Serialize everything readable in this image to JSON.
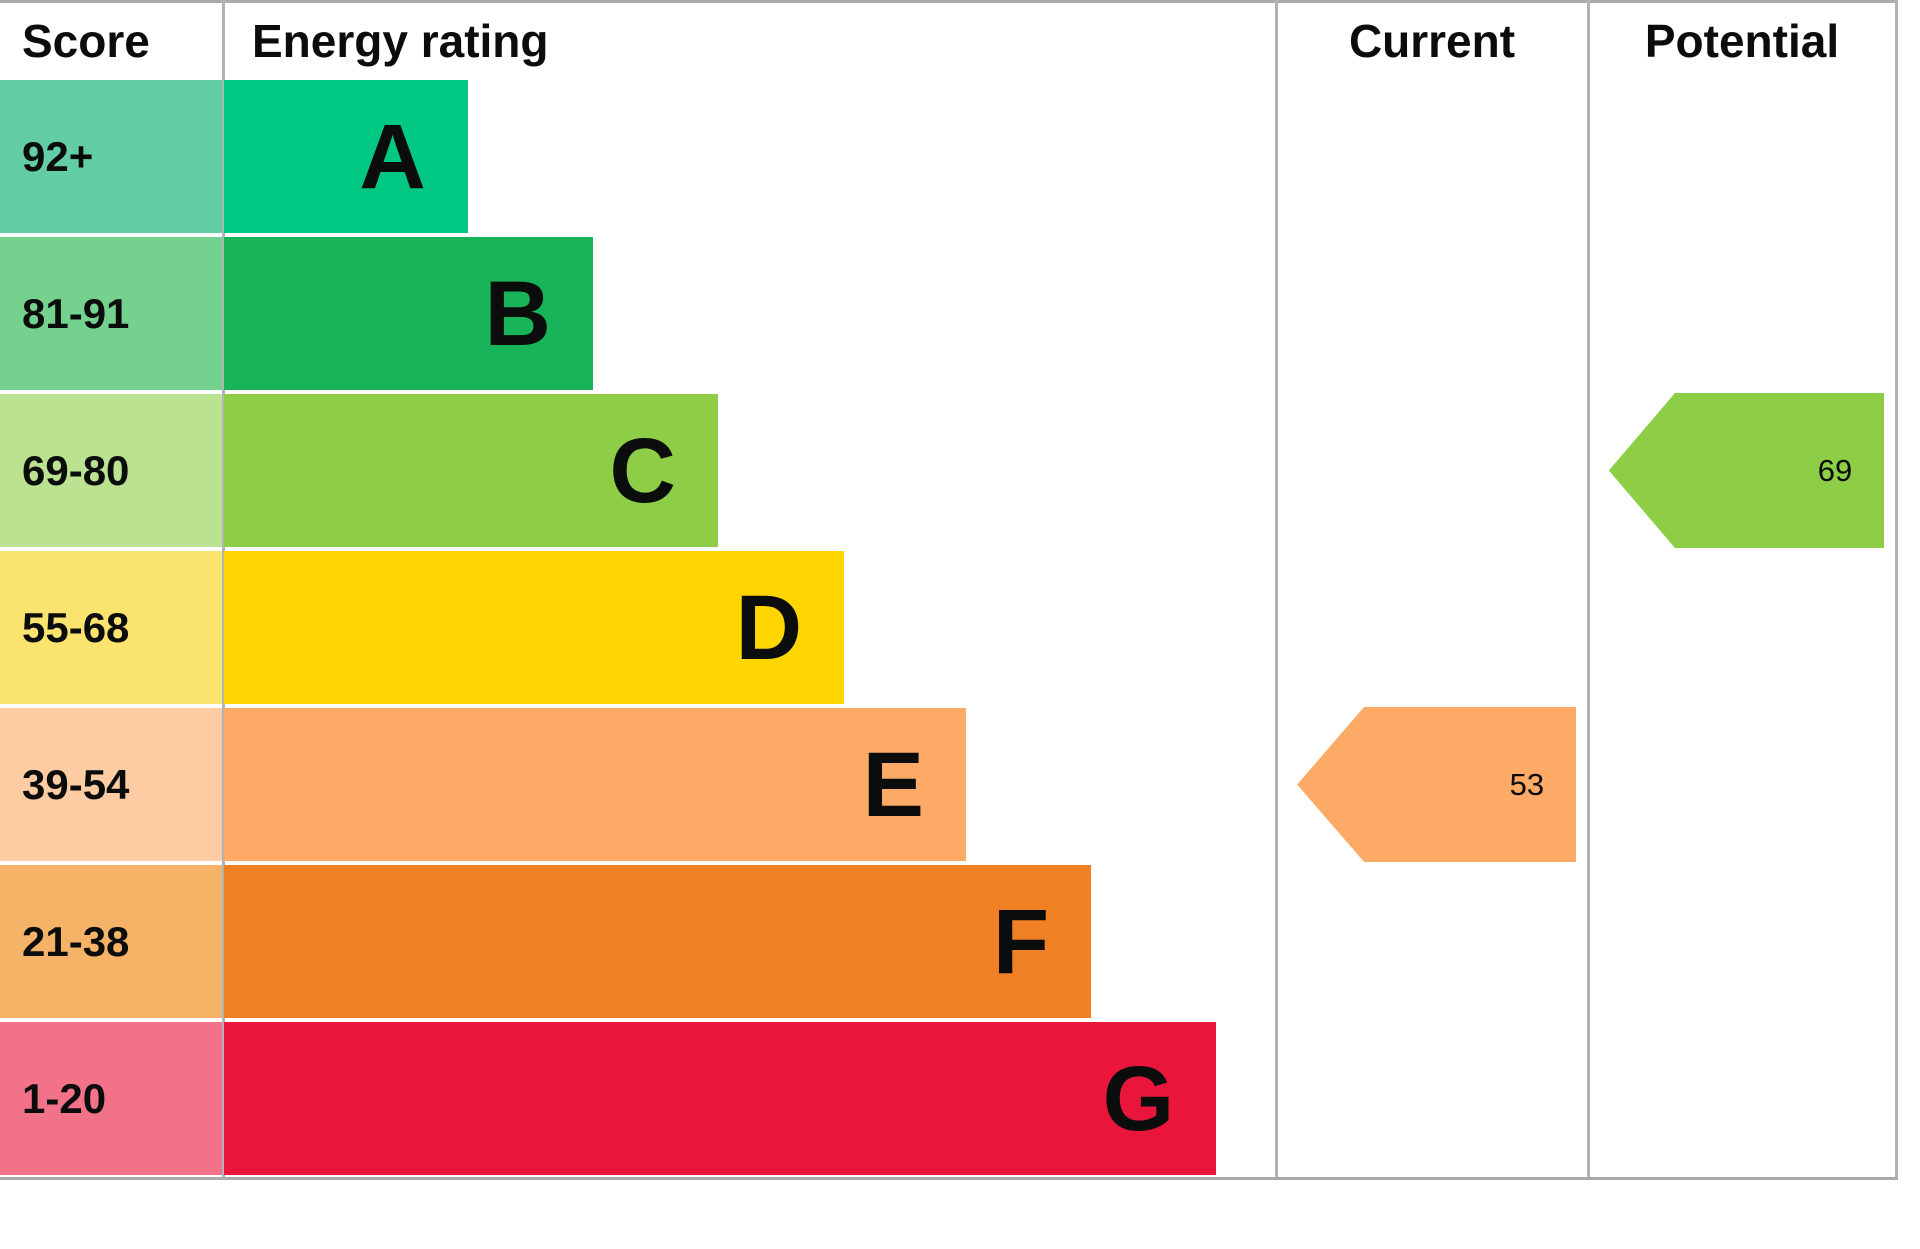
{
  "header": {
    "score": "Score",
    "energy_rating": "Energy rating",
    "current": "Current",
    "potential": "Potential"
  },
  "bands": [
    {
      "letter": "A",
      "range": "92+",
      "bar_color": "#00c781",
      "cell_color": "#63cda6",
      "bar_width": "23.2%"
    },
    {
      "letter": "B",
      "range": "81-91",
      "bar_color": "#19b459",
      "cell_color": "#75d28e",
      "bar_width": "35.1%"
    },
    {
      "letter": "C",
      "range": "69-80",
      "bar_color": "#8dce46",
      "cell_color": "#bbe290",
      "bar_width": "47.0%"
    },
    {
      "letter": "D",
      "range": "55-68",
      "bar_color": "#ffd500",
      "cell_color": "#fae36e",
      "bar_width": "59.0%"
    },
    {
      "letter": "E",
      "range": "39-54",
      "bar_color": "#fcaa65",
      "cell_color": "#fdcca3",
      "bar_width": "70.6%"
    },
    {
      "letter": "F",
      "range": "21-38",
      "bar_color": "#ef8023",
      "cell_color": "#f5b367",
      "bar_width": "82.5%"
    },
    {
      "letter": "G",
      "range": "1-20",
      "bar_color": "#e9153b",
      "cell_color": "#f27389",
      "bar_width": "94.4%"
    }
  ],
  "current": {
    "value": "53",
    "band": "E",
    "color": "#fcaa65"
  },
  "potential": {
    "value": "69",
    "band": "C",
    "color": "#8dce46"
  },
  "chart_data": {
    "type": "bar",
    "title": "Energy rating (EPC band chart)",
    "categories": [
      "A",
      "B",
      "C",
      "D",
      "E",
      "F",
      "G"
    ],
    "band_score_ranges": [
      "92+",
      "81-91",
      "69-80",
      "55-68",
      "39-54",
      "21-38",
      "1-20"
    ],
    "band_colors": [
      "#00c781",
      "#19b459",
      "#8dce46",
      "#ffd500",
      "#fcaa65",
      "#ef8023",
      "#e9153b"
    ],
    "bar_relative_lengths": [
      0.232,
      0.351,
      0.47,
      0.59,
      0.706,
      0.825,
      0.944
    ],
    "columns": [
      "Score",
      "Energy rating",
      "Current",
      "Potential"
    ],
    "current_score": 53,
    "current_band": "E",
    "potential_score": 69,
    "potential_band": "C",
    "legend_position": "none",
    "grid": false
  }
}
